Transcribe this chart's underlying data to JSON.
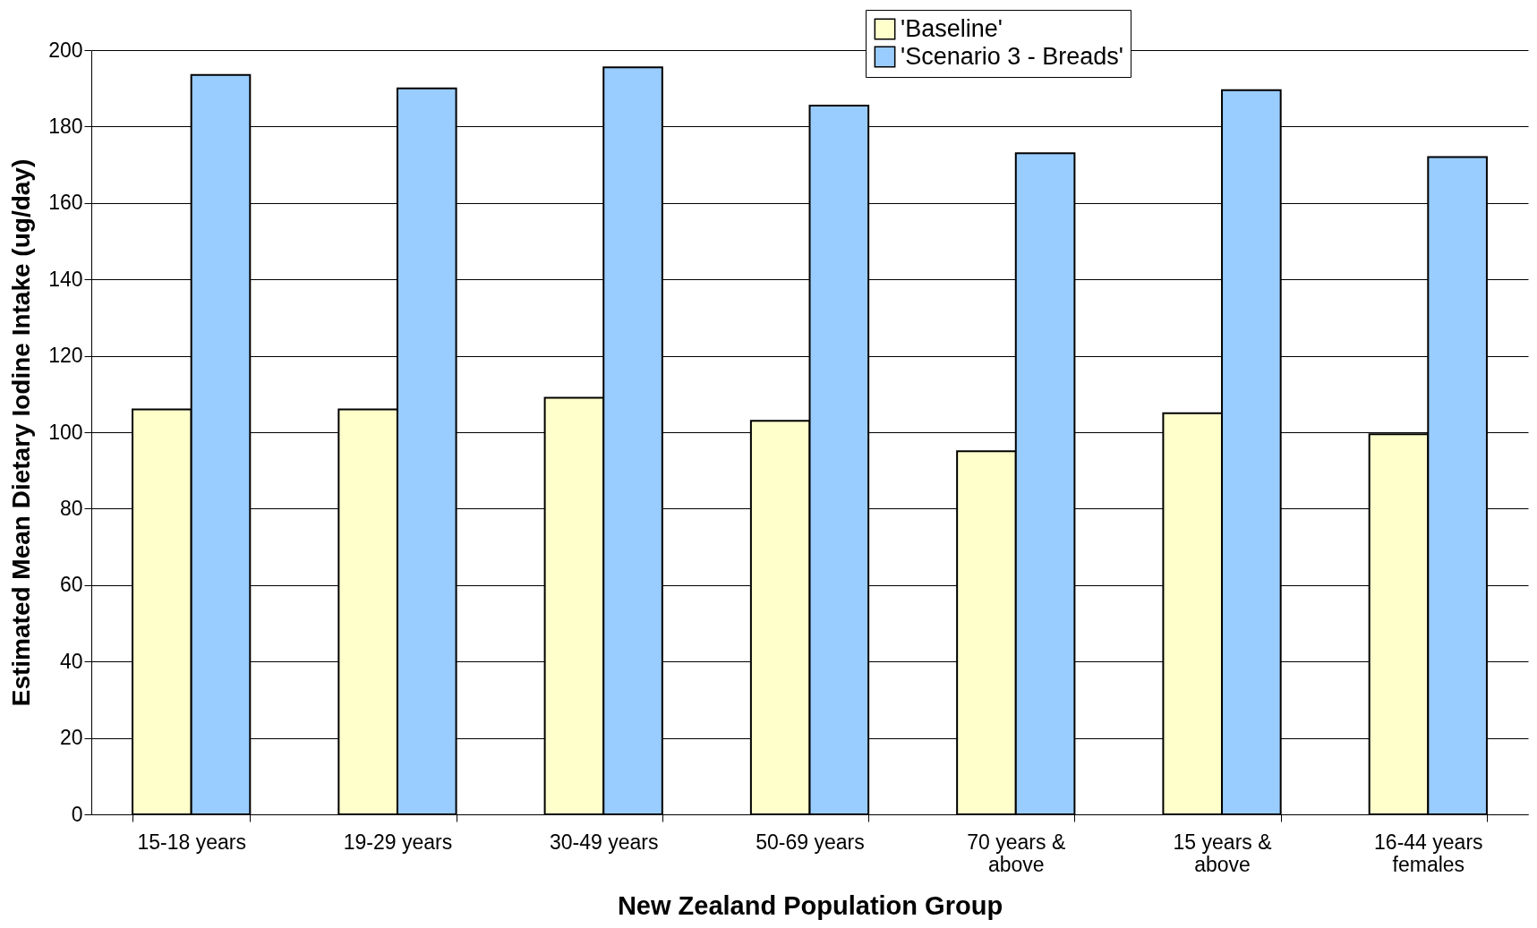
{
  "chart_data": {
    "type": "bar",
    "xlabel": "New Zealand Population Group",
    "ylabel": "Estimated Mean Dietary Iodine Intake (ug/day)",
    "categories": [
      "15-18 years",
      "19-29 years",
      "30-49 years",
      "50-69 years",
      "70 years & above",
      "15 years & above",
      "16-44 years females"
    ],
    "series": [
      {
        "name": "'Baseline'",
        "color": "#ffffcc",
        "values": [
          106,
          106,
          109,
          103,
          95,
          105,
          99.5
        ]
      },
      {
        "name": "'Scenario 3 - Breads'",
        "color": "#99ccff",
        "values": [
          193.5,
          190,
          195.5,
          185.5,
          173,
          189.5,
          172
        ]
      }
    ],
    "ylim": [
      0,
      200
    ],
    "yticks": [
      0,
      20,
      40,
      60,
      80,
      100,
      120,
      140,
      160,
      180,
      200
    ],
    "grid": "y",
    "legend": "top right"
  }
}
